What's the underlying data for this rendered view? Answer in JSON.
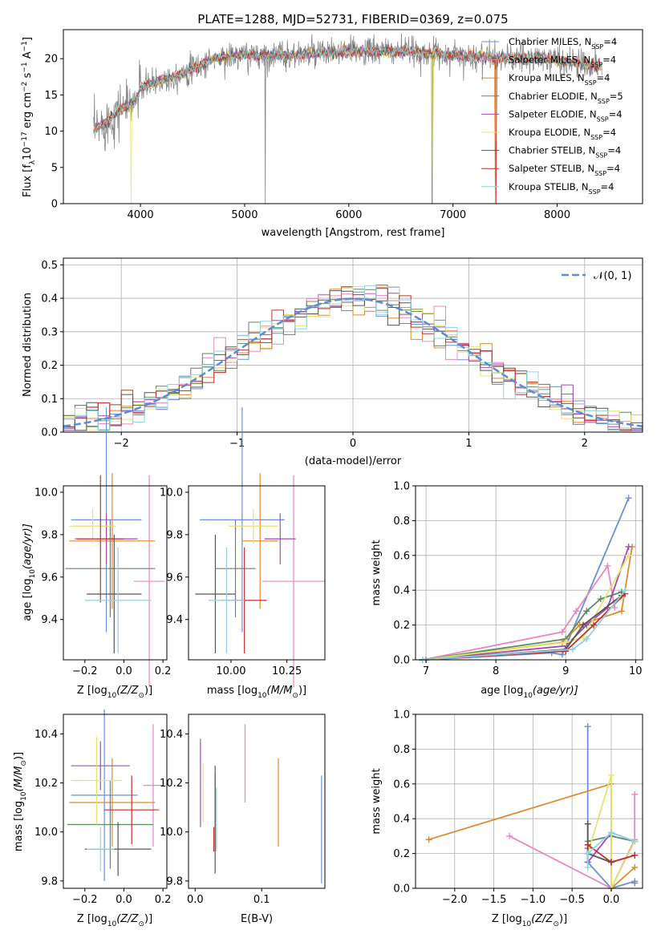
{
  "colors": {
    "series": [
      "#6a8fd8",
      "#e887c1",
      "#e08a2c",
      "#5f8a5f",
      "#a24ab0",
      "#e3e370",
      "#555555",
      "#c0302b",
      "#8dd4dc"
    ],
    "normal": "#5b8cd6",
    "grid": "#b0b0b0"
  },
  "chart_data": [
    {
      "type": "line",
      "title": "PLATE=1288, MJD=52731, FIBERID=0369, z=0.075",
      "xlabel": "wavelength [Angstrom, rest frame]",
      "ylabel": "Flux [f",
      "ylabel_parts": [
        "Flux [f",
        "λ",
        "10",
        "−17",
        " erg cm",
        "−2",
        " s",
        "−1",
        " A",
        "−1",
        "]"
      ],
      "xlim": [
        3260,
        8820
      ],
      "ylim": [
        0,
        24
      ],
      "xticks": [
        4000,
        5000,
        6000,
        7000,
        8000
      ],
      "yticks": [
        0,
        5,
        10,
        15,
        20
      ],
      "grid": false,
      "legend_position": "right",
      "series": [
        {
          "name": "Chabrier MILES",
          "nssp": "4"
        },
        {
          "name": "Salpeter MILES",
          "nssp": "4"
        },
        {
          "name": "Kroupa MILES",
          "nssp": "4"
        },
        {
          "name": "Chabrier ELODIE",
          "nssp": "5"
        },
        {
          "name": "Salpeter ELODIE",
          "nssp": "4"
        },
        {
          "name": "Kroupa ELODIE",
          "nssp": "4"
        },
        {
          "name": "Chabrier STELIB",
          "nssp": "4"
        },
        {
          "name": "Salpeter STELIB",
          "nssp": "4"
        },
        {
          "name": "Kroupa STELIB",
          "nssp": "4"
        }
      ],
      "nssp_label": "N",
      "nssp_sub": "SSP",
      "continuum": {
        "x": [
          3550,
          3650,
          3800,
          3950,
          4000,
          4100,
          4300,
          4500,
          4700,
          5000,
          5500,
          6000,
          6500,
          7000,
          7500,
          7900,
          8400
        ],
        "y": [
          10,
          11,
          13,
          14,
          16,
          16.5,
          17.5,
          18.5,
          20,
          20.5,
          20.5,
          21,
          21,
          20.5,
          20,
          20,
          19
        ]
      }
    },
    {
      "type": "histogram",
      "xlabel": "(data-model)/error",
      "ylabel": "Normed distribution",
      "xlim": [
        -2.5,
        2.5
      ],
      "ylim": [
        0,
        0.52
      ],
      "xticks": [
        -2,
        -1,
        0,
        1,
        2
      ],
      "yticks": [
        0.0,
        0.1,
        0.2,
        0.3,
        0.4,
        0.5
      ],
      "grid": true,
      "legend": "𝒩(0, 1)",
      "legend_position": "top-right",
      "bin_width": 0.1
    },
    {
      "type": "scatter",
      "xlabel": "Z [log",
      "xlabel_parts": [
        "Z [log",
        "10",
        "(Z/Z",
        "⊙",
        ")]"
      ],
      "ylabel_parts": [
        "age  [log",
        "10",
        "(age/yr)]"
      ],
      "xlim": [
        -0.31,
        0.22
      ],
      "ylim": [
        9.21,
        10.03
      ],
      "xticks": [
        -0.2,
        0.0,
        0.2
      ],
      "yticks": [
        9.4,
        9.6,
        9.8,
        10.0
      ],
      "points": [
        {
          "x": -0.09,
          "xerr": 0.18,
          "y": 9.87,
          "yerr": 0.53
        },
        {
          "x": 0.13,
          "xerr": 0.08,
          "y": 9.58,
          "yerr": 0.5
        },
        {
          "x": -0.06,
          "xerr": 0.22,
          "y": 9.77,
          "yerr": 0.32
        },
        {
          "x": -0.07,
          "xerr": 0.23,
          "y": 9.64,
          "yerr": 0.23
        },
        {
          "x": -0.09,
          "xerr": 0.16,
          "y": 9.78,
          "yerr": 0.12
        },
        {
          "x": -0.16,
          "xerr": 0.12,
          "y": 9.84,
          "yerr": 0.08
        },
        {
          "x": -0.05,
          "xerr": 0.14,
          "y": 9.52,
          "yerr": 0.28
        },
        {
          "x": -0.12,
          "xerr": 0.12,
          "y": 9.78,
          "yerr": 0.3
        },
        {
          "x": -0.03,
          "xerr": 0.17,
          "y": 9.49,
          "yerr": 0.25
        }
      ]
    },
    {
      "type": "scatter",
      "xlabel_parts": [
        "mass [log",
        "10",
        "(M/M",
        "⊙",
        ")]"
      ],
      "xlim": [
        9.81,
        10.42
      ],
      "ylim": [
        9.21,
        10.03
      ],
      "xticks": [
        10.0,
        10.25
      ],
      "xtick_labels": [
        "10.00",
        "10.25"
      ],
      "yticks": [
        9.4,
        9.6,
        9.8,
        10.0
      ],
      "points": [
        {
          "x": 10.05,
          "xerr": 0.19,
          "y": 9.87,
          "yerr": 0.53
        },
        {
          "x": 10.28,
          "xerr": 0.14,
          "y": 9.58,
          "yerr": 0.5
        },
        {
          "x": 10.13,
          "xerr": 0.08,
          "y": 9.77,
          "yerr": 0.32
        },
        {
          "x": 10.02,
          "xerr": 0.09,
          "y": 9.64,
          "yerr": 0.23
        },
        {
          "x": 10.22,
          "xerr": 0.07,
          "y": 9.78,
          "yerr": 0.12
        },
        {
          "x": 10.1,
          "xerr": 0.11,
          "y": 9.84,
          "yerr": 0.08
        },
        {
          "x": 9.93,
          "xerr": 0.09,
          "y": 9.52,
          "yerr": 0.28
        },
        {
          "x": 10.06,
          "xerr": 0.1,
          "y": 9.49,
          "yerr": 0.25
        },
        {
          "x": 9.98,
          "xerr": 0.08,
          "y": 9.49,
          "yerr": 0.25
        }
      ]
    },
    {
      "type": "line",
      "xlabel_parts": [
        "age  [log",
        "10",
        "(age/yr)]"
      ],
      "ylabel": "mass weight",
      "xlim": [
        6.85,
        10.1
      ],
      "ylim": [
        0,
        1
      ],
      "xticks": [
        7,
        8,
        9,
        10
      ],
      "yticks": [
        0.0,
        0.2,
        0.4,
        0.6,
        0.8,
        1.0
      ],
      "grid": true,
      "series": [
        {
          "x": [
            7.0,
            8.8,
            8.95,
            9.9
          ],
          "y": [
            0.0,
            0.04,
            0.03,
            0.93
          ]
        },
        {
          "x": [
            6.95,
            8.95,
            9.15,
            9.6,
            9.7
          ],
          "y": [
            0.0,
            0.16,
            0.28,
            0.54,
            0.3
          ]
        },
        {
          "x": [
            6.95,
            8.95,
            9.2,
            9.8,
            9.95
          ],
          "y": [
            0.0,
            0.1,
            0.2,
            0.28,
            0.65
          ]
        },
        {
          "x": [
            6.95,
            9.0,
            9.3,
            9.5,
            9.8
          ],
          "y": [
            0.0,
            0.12,
            0.28,
            0.35,
            0.39
          ]
        },
        {
          "x": [
            6.95,
            9.0,
            9.3,
            9.6,
            9.9
          ],
          "y": [
            0.0,
            0.08,
            0.2,
            0.3,
            0.65
          ]
        },
        {
          "x": [
            6.95,
            9.0,
            9.25,
            9.9
          ],
          "y": [
            0.0,
            0.1,
            0.13,
            0.6
          ]
        },
        {
          "x": [
            6.95,
            9.0,
            9.25,
            9.8
          ],
          "y": [
            0.0,
            0.06,
            0.2,
            0.37
          ]
        },
        {
          "x": [
            6.95,
            9.0,
            9.4,
            9.85
          ],
          "y": [
            0.0,
            0.05,
            0.2,
            0.38
          ]
        },
        {
          "x": [
            6.95,
            9.1,
            9.3,
            9.85
          ],
          "y": [
            0.0,
            0.06,
            0.12,
            0.4
          ]
        }
      ]
    },
    {
      "type": "scatter",
      "xlabel_parts": [
        "Z [log",
        "10",
        "(Z/Z",
        "⊙",
        ")]"
      ],
      "ylabel_parts": [
        "mass [log",
        "10",
        "(M/M",
        "⊙",
        ")]"
      ],
      "xlim": [
        -0.31,
        0.22
      ],
      "ylim": [
        9.77,
        10.48
      ],
      "xticks": [
        -0.2,
        0.0,
        0.2
      ],
      "yticks": [
        9.8,
        10.0,
        10.2,
        10.4
      ],
      "points": [
        {
          "x": -0.1,
          "xerr": 0.17,
          "y": 10.15,
          "yerr": 0.35
        },
        {
          "x": 0.15,
          "xerr": 0.05,
          "y": 10.19,
          "yerr": 0.25
        },
        {
          "x": -0.06,
          "xerr": 0.22,
          "y": 10.12,
          "yerr": 0.18
        },
        {
          "x": -0.07,
          "xerr": 0.22,
          "y": 10.03,
          "yerr": 0.18
        },
        {
          "x": -0.12,
          "xerr": 0.15,
          "y": 10.27,
          "yerr": 0.1
        },
        {
          "x": -0.14,
          "xerr": 0.13,
          "y": 10.21,
          "yerr": 0.18
        },
        {
          "x": -0.03,
          "xerr": 0.17,
          "y": 9.93,
          "yerr": 0.11
        },
        {
          "x": 0.04,
          "xerr": 0.14,
          "y": 10.09,
          "yerr": 0.14
        },
        {
          "x": -0.12,
          "xerr": 0.07,
          "y": 9.93,
          "yerr": 0.09
        }
      ]
    },
    {
      "type": "scatter",
      "xlabel": "E(B-V)",
      "xlim": [
        -0.01,
        0.195
      ],
      "ylim": [
        9.77,
        10.48
      ],
      "xticks": [
        0.0,
        0.1
      ],
      "xtick_labels": [
        "0.0",
        "0.1"
      ],
      "yticks": [
        9.8,
        10.0,
        10.2,
        10.4
      ],
      "points": [
        {
          "x": 0.19,
          "y": 10.01,
          "yerr": 0.22
        },
        {
          "x": 0.075,
          "y": 10.28,
          "yerr": 0.16
        },
        {
          "x": 0.125,
          "y": 10.12,
          "yerr": 0.18
        },
        {
          "x": 0.03,
          "y": 10.08,
          "yerr": 0.16
        },
        {
          "x": 0.008,
          "y": 10.2,
          "yerr": 0.18
        },
        {
          "x": 0.012,
          "y": 10.16,
          "yerr": 0.12
        },
        {
          "x": 0.03,
          "y": 10.05,
          "yerr": 0.22
        },
        {
          "x": 0.028,
          "y": 9.97,
          "yerr": 0.05
        },
        {
          "x": 0.032,
          "y": 10.05,
          "yerr": 0.13
        }
      ]
    },
    {
      "type": "line",
      "xlabel_parts": [
        "Z [log",
        "10",
        "(Z/Z",
        "⊙",
        ")]"
      ],
      "ylabel": "mass weight",
      "xlim": [
        -2.5,
        0.4
      ],
      "ylim": [
        0,
        1
      ],
      "xticks": [
        -2.0,
        -1.5,
        -1.0,
        -0.5,
        0.0
      ],
      "xtick_labels": [
        "−2.0",
        "−1.5",
        "−1.0",
        "−0.5",
        "0.0"
      ],
      "yticks": [
        0.0,
        0.2,
        0.4,
        0.6,
        0.8,
        1.0
      ],
      "grid": true,
      "series": [
        {
          "x": [
            -0.3,
            -0.3,
            0.0,
            0.3,
            0.3
          ],
          "y": [
            0.93,
            0.15,
            0.0,
            0.04,
            0.03
          ]
        },
        {
          "x": [
            -1.3,
            0.0,
            0.3,
            0.3
          ],
          "y": [
            0.3,
            0.0,
            0.28,
            0.54
          ]
        },
        {
          "x": [
            -2.33,
            0.0,
            0.0,
            0.3
          ],
          "y": [
            0.28,
            0.6,
            0.0,
            0.12
          ]
        },
        {
          "x": [
            -0.3,
            0.0,
            0.3
          ],
          "y": [
            0.27,
            0.3,
            0.27
          ]
        },
        {
          "x": [
            -0.3,
            -0.3,
            0.0,
            0.3
          ],
          "y": [
            0.23,
            0.15,
            0.32,
            0.27
          ]
        },
        {
          "x": [
            -0.3,
            0.0,
            0.0,
            0.3
          ],
          "y": [
            0.2,
            0.65,
            0.0,
            0.27
          ]
        },
        {
          "x": [
            -0.3,
            -0.3,
            0.0,
            0.3
          ],
          "y": [
            0.37,
            0.2,
            0.15,
            0.19
          ]
        },
        {
          "x": [
            -0.3,
            0.0,
            0.3
          ],
          "y": [
            0.25,
            0.15,
            0.19
          ]
        },
        {
          "x": [
            -0.3,
            -0.3,
            0.0,
            0.3
          ],
          "y": [
            0.12,
            0.2,
            0.32,
            0.27
          ]
        }
      ]
    }
  ]
}
